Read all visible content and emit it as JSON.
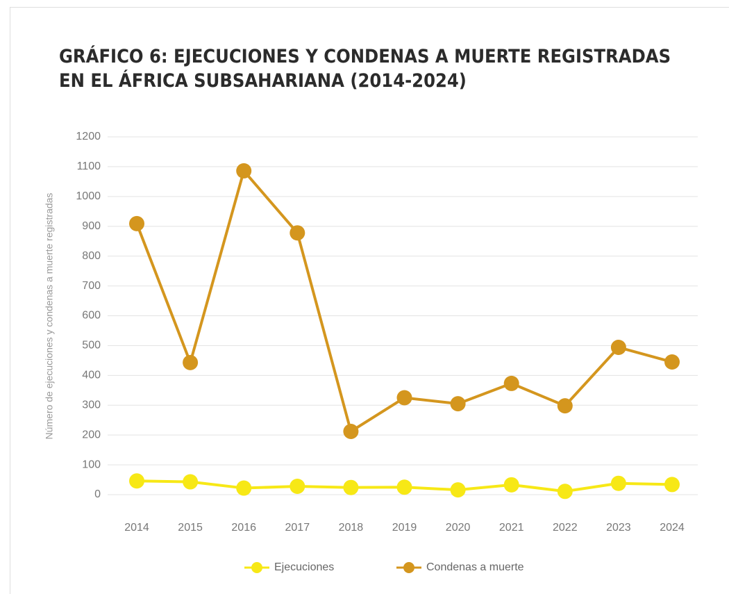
{
  "chart_data": {
    "type": "line",
    "title": [
      "GRÁFICO 6: EJECUCIONES Y CONDENAS A MUERTE REGISTRADAS",
      "EN EL ÁFRICA SUBSAHARIANA (2014-2024)"
    ],
    "y_label": "Número de ejecuciones y condenas a muerte registradas",
    "categories": [
      "2014",
      "2015",
      "2016",
      "2017",
      "2018",
      "2019",
      "2020",
      "2021",
      "2022",
      "2023",
      "2024"
    ],
    "series": [
      {
        "name": "Ejecuciones",
        "color": "#f7e816",
        "values": [
          46,
          43,
          22,
          28,
          24,
          25,
          16,
          33,
          11,
          38,
          34
        ]
      },
      {
        "name": "Condenas a muerte",
        "color": "#d4961e",
        "values": [
          909,
          443,
          1086,
          878,
          212,
          325,
          305,
          373,
          298,
          494,
          445
        ]
      }
    ],
    "ylim": [
      0,
      1200
    ],
    "yticks": [
      0,
      100,
      200,
      300,
      400,
      500,
      600,
      700,
      800,
      900,
      1000,
      1100,
      1200
    ],
    "grid": true,
    "legend": "bottom"
  }
}
